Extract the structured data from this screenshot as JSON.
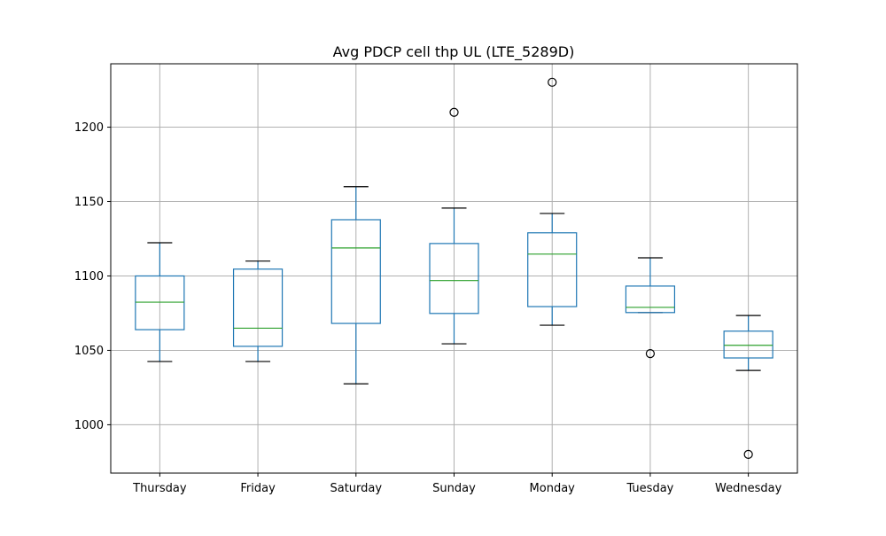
{
  "chart_data": {
    "type": "boxplot",
    "title": "Avg PDCP cell thp UL (LTE_5289D)",
    "xlabel": "",
    "ylabel": "",
    "categories": [
      "Thursday",
      "Friday",
      "Saturday",
      "Sunday",
      "Monday",
      "Tuesday",
      "Wednesday"
    ],
    "boxes": [
      {
        "category": "Thursday",
        "whisker_low": 1042.5,
        "q1": 1063.9,
        "median": 1082.4,
        "q3": 1100.0,
        "whisker_high": 1122.3,
        "fliers": []
      },
      {
        "category": "Friday",
        "whisker_low": 1042.5,
        "q1": 1052.7,
        "median": 1064.9,
        "q3": 1104.6,
        "whisker_high": 1110.0,
        "fliers": []
      },
      {
        "category": "Saturday",
        "whisker_low": 1027.5,
        "q1": 1068.1,
        "median": 1118.8,
        "q3": 1137.8,
        "whisker_high": 1160.0,
        "fliers": []
      },
      {
        "category": "Sunday",
        "whisker_low": 1054.4,
        "q1": 1074.8,
        "median": 1096.9,
        "q3": 1121.8,
        "whisker_high": 1145.6,
        "fliers": [
          1210.0
        ]
      },
      {
        "category": "Monday",
        "whisker_low": 1066.9,
        "q1": 1079.4,
        "median": 1114.7,
        "q3": 1129.0,
        "whisker_high": 1142.0,
        "fliers": [
          1230.2
        ]
      },
      {
        "category": "Tuesday",
        "whisker_low": 1075.4,
        "q1": 1075.4,
        "median": 1078.9,
        "q3": 1093.2,
        "whisker_high": 1112.2,
        "fliers": [
          1047.8
        ]
      },
      {
        "category": "Wednesday",
        "whisker_low": 1036.5,
        "q1": 1044.9,
        "median": 1053.4,
        "q3": 1062.9,
        "whisker_high": 1073.4,
        "fliers": [
          980.1
        ]
      }
    ],
    "yticks": [
      1000,
      1050,
      1100,
      1150,
      1200
    ],
    "ylim": [
      967.5,
      1242.6
    ],
    "grid": true,
    "legend": "none",
    "colors": {
      "box": "#1f77b4",
      "median": "#2ca02c",
      "cap": "#000000",
      "flier": "#000000",
      "grid": "#b0b0b0"
    }
  }
}
